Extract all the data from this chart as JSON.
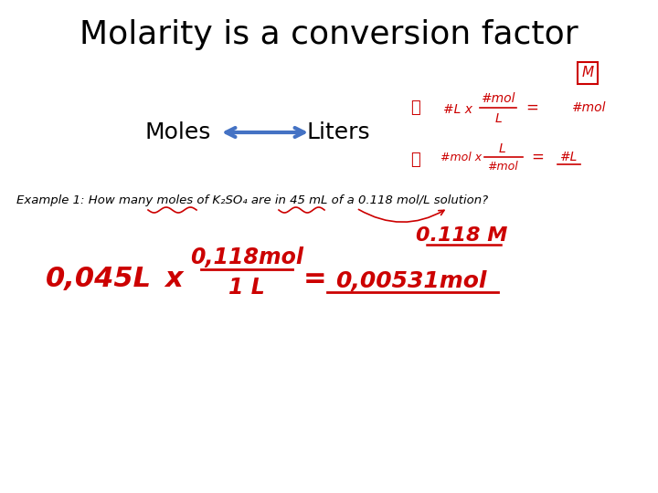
{
  "title": "Molarity is a conversion factor",
  "title_fontsize": 26,
  "title_color": "#000000",
  "background_color": "#ffffff",
  "moles_text": "Moles",
  "liters_text": "Liters",
  "arrow_color": "#4472c4",
  "moles_liters_fontsize": 18,
  "handwriting_color": "#cc0000",
  "example_text": "Example 1: How many moles of K₂SO₄ are in 45 mL of a 0.118 mol/L solution?",
  "example_fontsize": 9.5,
  "red": "#cc0000"
}
